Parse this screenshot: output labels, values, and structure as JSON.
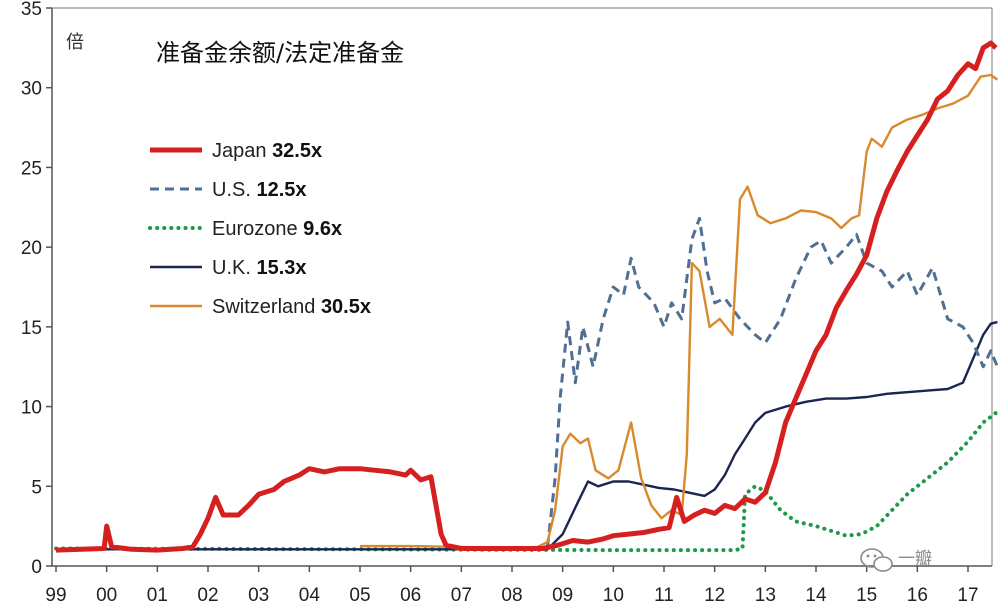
{
  "chart_data": {
    "type": "line",
    "title": "准备金余额/法定准备金",
    "ylabel": "倍",
    "xlabel": "",
    "ylim": [
      0,
      35
    ],
    "xlim": [
      1999,
      2017.6
    ],
    "yticks": [
      0,
      5,
      10,
      15,
      20,
      25,
      30,
      35
    ],
    "x_tick_values": [
      1999,
      2000,
      2001,
      2002,
      2003,
      2004,
      2005,
      2006,
      2007,
      2008,
      2009,
      2010,
      2011,
      2012,
      2013,
      2014,
      2015,
      2016,
      2017
    ],
    "x_tick_labels": [
      "99",
      "00",
      "01",
      "02",
      "03",
      "04",
      "05",
      "06",
      "07",
      "08",
      "09",
      "10",
      "11",
      "12",
      "13",
      "14",
      "15",
      "16",
      "17"
    ],
    "grid": false,
    "legend_position": "top-left",
    "series": [
      {
        "name": "Japan",
        "final_label": "32.5x",
        "color": "#d62020",
        "style": "solid",
        "width": 5,
        "points": [
          [
            1999.0,
            1.0
          ],
          [
            1999.5,
            1.05
          ],
          [
            1999.95,
            1.1
          ],
          [
            2000.0,
            2.5
          ],
          [
            2000.1,
            1.2
          ],
          [
            2000.5,
            1.05
          ],
          [
            2001.0,
            1.0
          ],
          [
            2001.5,
            1.1
          ],
          [
            2001.7,
            1.2
          ],
          [
            2001.85,
            2.0
          ],
          [
            2002.0,
            3.0
          ],
          [
            2002.15,
            4.3
          ],
          [
            2002.3,
            3.2
          ],
          [
            2002.6,
            3.2
          ],
          [
            2002.8,
            3.8
          ],
          [
            2003.0,
            4.5
          ],
          [
            2003.3,
            4.8
          ],
          [
            2003.5,
            5.3
          ],
          [
            2003.8,
            5.7
          ],
          [
            2004.0,
            6.1
          ],
          [
            2004.3,
            5.9
          ],
          [
            2004.6,
            6.1
          ],
          [
            2005.0,
            6.1
          ],
          [
            2005.3,
            6.0
          ],
          [
            2005.6,
            5.9
          ],
          [
            2005.9,
            5.7
          ],
          [
            2006.0,
            6.0
          ],
          [
            2006.2,
            5.4
          ],
          [
            2006.4,
            5.6
          ],
          [
            2006.6,
            2.0
          ],
          [
            2006.7,
            1.3
          ],
          [
            2007.0,
            1.1
          ],
          [
            2008.0,
            1.1
          ],
          [
            2008.6,
            1.1
          ],
          [
            2008.9,
            1.3
          ],
          [
            2009.2,
            1.6
          ],
          [
            2009.5,
            1.5
          ],
          [
            2009.8,
            1.7
          ],
          [
            2010.0,
            1.9
          ],
          [
            2010.3,
            2.0
          ],
          [
            2010.6,
            2.1
          ],
          [
            2010.9,
            2.3
          ],
          [
            2011.1,
            2.4
          ],
          [
            2011.25,
            4.3
          ],
          [
            2011.4,
            2.8
          ],
          [
            2011.6,
            3.2
          ],
          [
            2011.8,
            3.5
          ],
          [
            2012.0,
            3.3
          ],
          [
            2012.2,
            3.8
          ],
          [
            2012.4,
            3.6
          ],
          [
            2012.6,
            4.2
          ],
          [
            2012.8,
            4.0
          ],
          [
            2013.0,
            4.6
          ],
          [
            2013.2,
            6.5
          ],
          [
            2013.4,
            9.0
          ],
          [
            2013.6,
            10.5
          ],
          [
            2013.8,
            12.0
          ],
          [
            2014.0,
            13.5
          ],
          [
            2014.2,
            14.5
          ],
          [
            2014.4,
            16.2
          ],
          [
            2014.6,
            17.3
          ],
          [
            2014.8,
            18.3
          ],
          [
            2015.0,
            19.5
          ],
          [
            2015.2,
            21.8
          ],
          [
            2015.4,
            23.5
          ],
          [
            2015.6,
            24.8
          ],
          [
            2015.8,
            26.0
          ],
          [
            2016.0,
            27.0
          ],
          [
            2016.2,
            28.0
          ],
          [
            2016.4,
            29.3
          ],
          [
            2016.6,
            29.8
          ],
          [
            2016.8,
            30.8
          ],
          [
            2017.0,
            31.5
          ],
          [
            2017.15,
            31.2
          ],
          [
            2017.3,
            32.5
          ],
          [
            2017.45,
            32.8
          ],
          [
            2017.55,
            32.5
          ]
        ]
      },
      {
        "name": "U.S.",
        "final_label": "12.5x",
        "color": "#4f6f95",
        "style": "dashed",
        "width": 3,
        "points": [
          [
            2008.7,
            1.2
          ],
          [
            2008.85,
            5.5
          ],
          [
            2008.95,
            10.5
          ],
          [
            2009.1,
            15.3
          ],
          [
            2009.25,
            11.5
          ],
          [
            2009.4,
            15.0
          ],
          [
            2009.6,
            12.5
          ],
          [
            2009.8,
            15.5
          ],
          [
            2010.0,
            17.5
          ],
          [
            2010.2,
            17.0
          ],
          [
            2010.35,
            19.3
          ],
          [
            2010.5,
            17.5
          ],
          [
            2010.8,
            16.5
          ],
          [
            2011.0,
            15.0
          ],
          [
            2011.15,
            16.5
          ],
          [
            2011.35,
            15.5
          ],
          [
            2011.55,
            20.5
          ],
          [
            2011.7,
            21.8
          ],
          [
            2011.85,
            18.5
          ],
          [
            2012.0,
            16.5
          ],
          [
            2012.2,
            16.8
          ],
          [
            2012.5,
            15.5
          ],
          [
            2012.8,
            14.5
          ],
          [
            2013.0,
            14.0
          ],
          [
            2013.3,
            15.5
          ],
          [
            2013.6,
            18.0
          ],
          [
            2013.9,
            20.0
          ],
          [
            2014.1,
            20.4
          ],
          [
            2014.3,
            19.0
          ],
          [
            2014.6,
            20.0
          ],
          [
            2014.8,
            20.8
          ],
          [
            2015.0,
            19.0
          ],
          [
            2015.3,
            18.5
          ],
          [
            2015.5,
            17.5
          ],
          [
            2015.8,
            18.5
          ],
          [
            2016.0,
            17.0
          ],
          [
            2016.3,
            18.7
          ],
          [
            2016.6,
            15.5
          ],
          [
            2016.9,
            15.0
          ],
          [
            2017.1,
            14.0
          ],
          [
            2017.3,
            12.5
          ],
          [
            2017.45,
            13.5
          ],
          [
            2017.58,
            12.5
          ]
        ]
      },
      {
        "name": "Eurozone",
        "final_label": "9.6x",
        "color": "#1c9a4a",
        "style": "dotted",
        "width": 4,
        "points": [
          [
            1999.0,
            1.1
          ],
          [
            2005.0,
            1.05
          ],
          [
            2010.0,
            1.0
          ],
          [
            2012.4,
            1.0
          ],
          [
            2012.55,
            1.1
          ],
          [
            2012.6,
            4.5
          ],
          [
            2012.8,
            5.0
          ],
          [
            2013.0,
            4.7
          ],
          [
            2013.3,
            3.5
          ],
          [
            2013.6,
            2.8
          ],
          [
            2014.0,
            2.5
          ],
          [
            2014.3,
            2.2
          ],
          [
            2014.6,
            1.9
          ],
          [
            2014.9,
            2.0
          ],
          [
            2015.2,
            2.5
          ],
          [
            2015.5,
            3.5
          ],
          [
            2015.8,
            4.5
          ],
          [
            2016.2,
            5.5
          ],
          [
            2016.6,
            6.5
          ],
          [
            2017.0,
            7.8
          ],
          [
            2017.3,
            9.0
          ],
          [
            2017.55,
            9.6
          ]
        ]
      },
      {
        "name": "U.K.",
        "final_label": "15.3x",
        "color": "#1c2450",
        "style": "solid",
        "width": 2.4,
        "points": [
          [
            1999.0,
            1.05
          ],
          [
            2006.0,
            1.05
          ],
          [
            2007.0,
            1.05
          ],
          [
            2008.0,
            1.1
          ],
          [
            2008.7,
            1.05
          ],
          [
            2009.0,
            2.0
          ],
          [
            2009.3,
            4.0
          ],
          [
            2009.5,
            5.3
          ],
          [
            2009.7,
            5.0
          ],
          [
            2010.0,
            5.3
          ],
          [
            2010.3,
            5.3
          ],
          [
            2010.6,
            5.1
          ],
          [
            2010.9,
            4.9
          ],
          [
            2011.2,
            4.8
          ],
          [
            2011.5,
            4.6
          ],
          [
            2011.8,
            4.4
          ],
          [
            2012.0,
            4.8
          ],
          [
            2012.2,
            5.7
          ],
          [
            2012.4,
            7.0
          ],
          [
            2012.6,
            8.0
          ],
          [
            2012.8,
            9.0
          ],
          [
            2013.0,
            9.6
          ],
          [
            2013.4,
            10.0
          ],
          [
            2013.8,
            10.3
          ],
          [
            2014.2,
            10.5
          ],
          [
            2014.6,
            10.5
          ],
          [
            2015.0,
            10.6
          ],
          [
            2015.4,
            10.8
          ],
          [
            2015.8,
            10.9
          ],
          [
            2016.2,
            11.0
          ],
          [
            2016.6,
            11.1
          ],
          [
            2016.9,
            11.5
          ],
          [
            2017.1,
            13.0
          ],
          [
            2017.3,
            14.5
          ],
          [
            2017.45,
            15.2
          ],
          [
            2017.58,
            15.3
          ]
        ]
      },
      {
        "name": "Switzerland",
        "final_label": "30.5x",
        "color": "#d88a2e",
        "style": "solid",
        "width": 2.4,
        "points": [
          [
            2005.0,
            1.25
          ],
          [
            2006.0,
            1.25
          ],
          [
            2007.0,
            1.2
          ],
          [
            2008.0,
            1.15
          ],
          [
            2008.5,
            1.2
          ],
          [
            2008.7,
            1.5
          ],
          [
            2008.85,
            3.5
          ],
          [
            2009.0,
            7.5
          ],
          [
            2009.15,
            8.3
          ],
          [
            2009.35,
            7.7
          ],
          [
            2009.5,
            8.0
          ],
          [
            2009.65,
            6.0
          ],
          [
            2009.9,
            5.5
          ],
          [
            2010.1,
            6.0
          ],
          [
            2010.35,
            9.0
          ],
          [
            2010.55,
            5.5
          ],
          [
            2010.75,
            3.8
          ],
          [
            2010.95,
            3.0
          ],
          [
            2011.15,
            3.5
          ],
          [
            2011.35,
            3.2
          ],
          [
            2011.45,
            7.0
          ],
          [
            2011.55,
            19.0
          ],
          [
            2011.7,
            18.5
          ],
          [
            2011.9,
            15.0
          ],
          [
            2012.1,
            15.5
          ],
          [
            2012.35,
            14.5
          ],
          [
            2012.5,
            23.0
          ],
          [
            2012.65,
            23.8
          ],
          [
            2012.85,
            22.0
          ],
          [
            2013.1,
            21.5
          ],
          [
            2013.4,
            21.8
          ],
          [
            2013.7,
            22.3
          ],
          [
            2014.0,
            22.2
          ],
          [
            2014.3,
            21.8
          ],
          [
            2014.5,
            21.2
          ],
          [
            2014.7,
            21.8
          ],
          [
            2014.85,
            22.0
          ],
          [
            2015.0,
            26.0
          ],
          [
            2015.1,
            26.8
          ],
          [
            2015.3,
            26.3
          ],
          [
            2015.5,
            27.5
          ],
          [
            2015.8,
            28.0
          ],
          [
            2016.1,
            28.3
          ],
          [
            2016.4,
            28.7
          ],
          [
            2016.7,
            29.0
          ],
          [
            2017.0,
            29.5
          ],
          [
            2017.25,
            30.7
          ],
          [
            2017.45,
            30.8
          ],
          [
            2017.58,
            30.5
          ]
        ]
      }
    ]
  },
  "watermark": {
    "text": "一瓣",
    "icon": "wechat-icon"
  }
}
